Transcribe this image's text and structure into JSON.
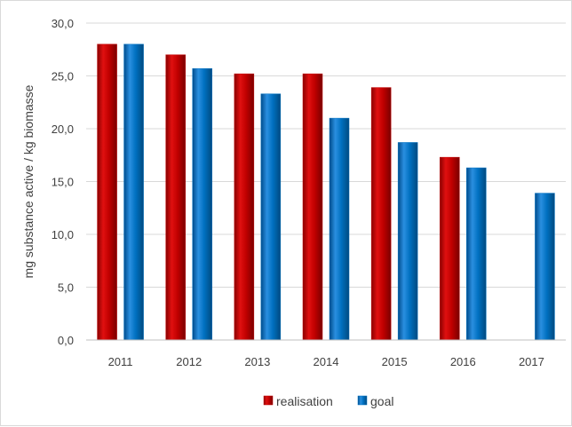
{
  "chart_data": {
    "type": "bar",
    "title": "",
    "xlabel": "",
    "ylabel": "mg substance active / kg biomasse",
    "ylim": [
      0,
      30
    ],
    "ytick_step": 5,
    "ytick_labels": [
      "0,0",
      "5,0",
      "10,0",
      "15,0",
      "20,0",
      "25,0",
      "30,0"
    ],
    "grid": true,
    "legend_position": "bottom",
    "categories": [
      "2011",
      "2012",
      "2013",
      "2014",
      "2015",
      "2016",
      "2017"
    ],
    "series": [
      {
        "name": "realisation",
        "color": "#c00000",
        "values": [
          28.0,
          27.0,
          25.2,
          25.2,
          23.9,
          17.3,
          null
        ]
      },
      {
        "name": "goal",
        "color": "#0070c0",
        "values": [
          28.0,
          25.7,
          23.3,
          21.0,
          18.7,
          16.3,
          13.9
        ]
      }
    ]
  }
}
